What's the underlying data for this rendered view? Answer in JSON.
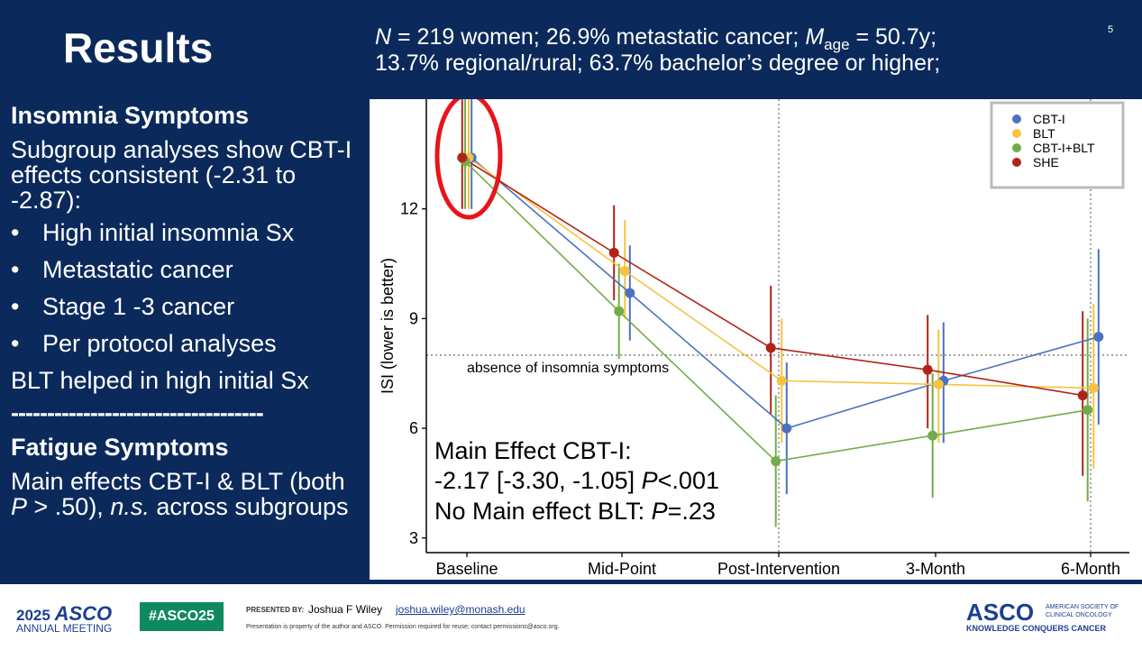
{
  "slide": {
    "title": "Results",
    "page_number": "5",
    "stats_line1_a": "N",
    "stats_line1_b": " = 219 women; 26.9% metastatic cancer; ",
    "stats_line1_c": "M",
    "stats_line1_sub": "age",
    "stats_line1_d": " = 50.7y;",
    "stats_line2": "13.7% regional/rural; 63.7% bachelor’s degree or higher;"
  },
  "left_panel": {
    "insomnia_heading": "Insomnia Symptoms",
    "insomnia_intro": "Subgroup analyses show CBT-I effects consistent (-2.31 to -2.87):",
    "bullet_glyph": "•",
    "bullets": [
      "High initial insomnia Sx",
      "Metastatic cancer",
      "Stage 1 -3 cancer",
      "Per protocol analyses"
    ],
    "blt_note": "BLT helped in high initial Sx",
    "divider": "-----------------------------------",
    "fatigue_heading": "Fatigue Symptoms",
    "fatigue_a": "Main effects CBT-I & BLT (both ",
    "fatigue_p": "P",
    "fatigue_b": " > .50), ",
    "fatigue_ns": "n.s.",
    "fatigue_c": " across subgroups"
  },
  "chart_data": {
    "type": "line",
    "title": "",
    "xlabel": "",
    "ylabel": "ISI (lower is better)",
    "categories": [
      "Baseline",
      "Mid-Point",
      "Post-Intervention",
      "3-Month",
      "6-Month"
    ],
    "yticks": [
      3,
      6,
      9,
      12
    ],
    "ylim": [
      2.6,
      15.0
    ],
    "grid": false,
    "legend_position": "top-right",
    "series": [
      {
        "name": "CBT-I",
        "color": "#4a72c0",
        "values": [
          13.4,
          9.7,
          6.0,
          7.3,
          8.5
        ],
        "lower": [
          12.0,
          8.4,
          4.2,
          5.6,
          6.1
        ],
        "upper": [
          15.0,
          11.0,
          7.8,
          8.9,
          10.9
        ]
      },
      {
        "name": "BLT",
        "color": "#f5c342",
        "values": [
          13.4,
          10.3,
          7.3,
          7.2,
          7.1
        ],
        "lower": [
          12.0,
          9.0,
          5.6,
          5.6,
          4.9
        ],
        "upper": [
          15.0,
          11.7,
          9.0,
          8.7,
          9.4
        ]
      },
      {
        "name": "CBT-I+BLT",
        "color": "#72ac48",
        "values": [
          13.3,
          9.2,
          5.1,
          5.8,
          6.5
        ],
        "lower": [
          12.0,
          7.9,
          3.3,
          4.1,
          4.0
        ],
        "upper": [
          15.0,
          10.5,
          6.9,
          7.5,
          9.0
        ]
      },
      {
        "name": "SHE",
        "color": "#b02418",
        "values": [
          13.4,
          10.8,
          8.2,
          7.6,
          6.9
        ],
        "lower": [
          12.0,
          9.5,
          6.4,
          6.0,
          4.7
        ],
        "upper": [
          15.0,
          12.1,
          9.9,
          9.1,
          9.2
        ]
      }
    ],
    "reference_line": {
      "value": 8.0,
      "label": "absence of insomnia symptoms"
    },
    "vertical_reference_categories": [
      "Post-Intervention",
      "6-Month"
    ],
    "annotation": {
      "line1": "Main Effect CBT-I:",
      "line2_a": "-2.17 [-3.30, -1.05] ",
      "line2_p": "P",
      "line2_b": "<.001",
      "line3_a": "No Main effect BLT: ",
      "line3_p": "P",
      "line3_b": "=.23"
    },
    "highlight_circle_color": "#e8141a"
  },
  "footer": {
    "year": "2025",
    "asco": "ASCO",
    "annual_meeting": "ANNUAL MEETING",
    "hashtag": "#ASCO25",
    "presented_by": "PRESENTED BY:",
    "presenter": "Joshua F Wiley",
    "email": "joshua.wiley@monash.edu",
    "disclaimer": "Presentation is property of the author and ASCO. Permission required for reuse; contact permissions@asco.org.",
    "org_short": "ASCO",
    "org_full_1": "AMERICAN SOCIETY OF",
    "org_full_2": "CLINICAL ONCOLOGY",
    "tagline": "KNOWLEDGE CONQUERS CANCER",
    "brand_blue": "#1c3f8f",
    "brand_green": "#0f8a5f"
  }
}
